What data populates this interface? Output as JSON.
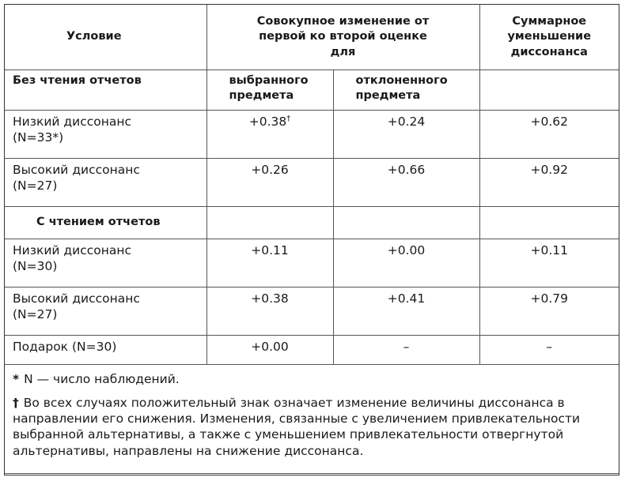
{
  "table": {
    "header": {
      "condition": "Условие",
      "change": "Совокупное изменение от первой ко второй оценке для",
      "total": "Суммарное уменьшение диссонанса"
    },
    "groups": [
      {
        "title": "Без чтения отчетов",
        "subheaders": [
          "выбранного предмета",
          "отклоненного предмета"
        ],
        "rows": [
          {
            "label": "Низкий диссонанс",
            "n": "(N=33*)",
            "cells": [
              "+0.38",
              "+0.24",
              "+0.62"
            ],
            "cell_mark": "†"
          },
          {
            "label": "Высокий диссонанс",
            "n": "(N=27)",
            "cells": [
              "+0.26",
              "+0.66",
              "+0.92"
            ]
          }
        ]
      },
      {
        "title": "С чтением отчетов",
        "rows": [
          {
            "label": "Низкий диссонанс",
            "n": "(N=30)",
            "cells": [
              "+0.11",
              "+0.00",
              "+0.11"
            ]
          },
          {
            "label": "Высокий диссонанс",
            "n": "(N=27)",
            "cells": [
              "+0.38",
              "+0.41",
              "+0.79"
            ]
          },
          {
            "label": "Подарок (N=30)",
            "cells": [
              "+0.00",
              "–",
              "–"
            ]
          }
        ]
      }
    ]
  },
  "footnotes": [
    {
      "marker": "*",
      "text": "N — число наблюдений."
    },
    {
      "marker": "†",
      "text": "Во всех случаях положительный знак означает изменение величины диссонанса в направлении его снижения. Изменения, связанные с увеличением привлекательности выбранной альтернативы, а также с уменьшением привлекательности отвергнутой альтернативы, направлены на снижение диссонанса."
    }
  ]
}
